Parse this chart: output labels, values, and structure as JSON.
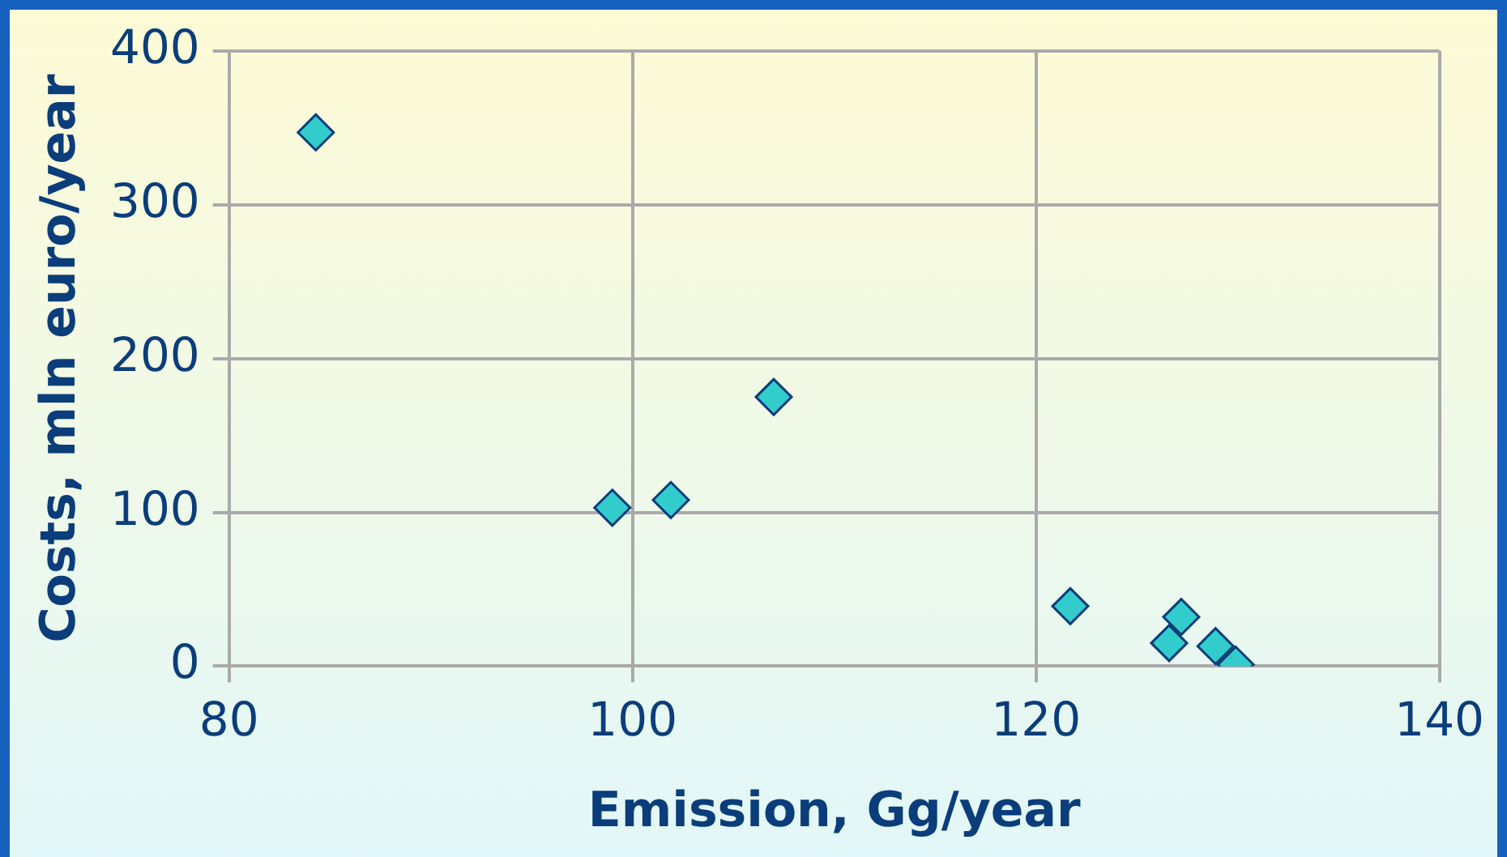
{
  "chart_data": {
    "type": "scatter",
    "xlabel": "Emission, Gg/year",
    "ylabel": "Costs, mln euro/year",
    "x": [
      84.3,
      99,
      101.9,
      107,
      121.7,
      127.2,
      126.6,
      128.9,
      129.9
    ],
    "series": [
      {
        "color": "#33cccc",
        "values": [
          347,
          103,
          108,
          175,
          39,
          32,
          15,
          13,
          1
        ]
      }
    ],
    "xlim": [
      80,
      140
    ],
    "xticks": [
      80,
      100,
      120,
      140
    ],
    "ylim": [
      0,
      400
    ],
    "yticks": [
      0,
      100,
      200,
      300,
      400
    ],
    "grid": true,
    "marker": "diamond",
    "legend": false
  }
}
